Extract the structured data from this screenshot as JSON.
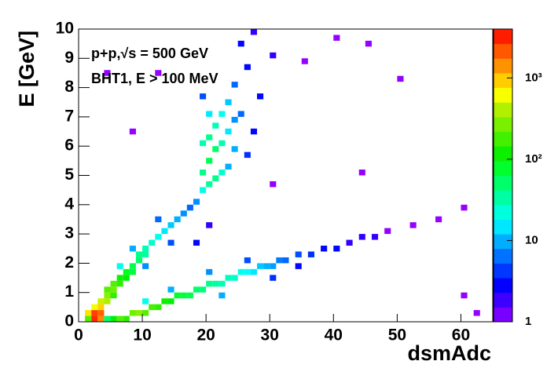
{
  "chart_data": {
    "type": "heatmap",
    "x_label": "dsmAdc",
    "y_label": "E [GeV]",
    "annotations": [
      "p+p,√s = 500 GeV",
      "BHT1, E > 100 MeV"
    ],
    "xlim": [
      0,
      65
    ],
    "xticks": [
      0,
      10,
      20,
      30,
      40,
      50,
      60
    ],
    "ylim": [
      0,
      10
    ],
    "yticks": [
      0,
      1,
      2,
      3,
      4,
      5,
      6,
      7,
      8,
      9,
      10
    ],
    "zlim": [
      1,
      4000
    ],
    "zlog": true,
    "zticks": [
      {
        "value": 1,
        "label": "1"
      },
      {
        "value": 10,
        "label": "10"
      },
      {
        "value": 100,
        "label": "10²"
      },
      {
        "value": 1000,
        "label": "10³"
      }
    ],
    "x": [
      1,
      1,
      2,
      2,
      3,
      3,
      2,
      3,
      3,
      4,
      4,
      4,
      5,
      5,
      5,
      6,
      6,
      7,
      7,
      8,
      8,
      9,
      9,
      10,
      10,
      11,
      12,
      13,
      14,
      15,
      16,
      17,
      6,
      8,
      12,
      10,
      14,
      18,
      19,
      19,
      20,
      19,
      20,
      21,
      21,
      22,
      22,
      23,
      23,
      24,
      24,
      25,
      26,
      20,
      21,
      22,
      20,
      19,
      23,
      24,
      25,
      27,
      28,
      30,
      18,
      20,
      26,
      27,
      4,
      5,
      6,
      7,
      8,
      9,
      10,
      11,
      12,
      13,
      14,
      15,
      16,
      17,
      18,
      19,
      20,
      21,
      22,
      23,
      24,
      25,
      26,
      27,
      28,
      29,
      30,
      31,
      32,
      34,
      36,
      38,
      40,
      42,
      44,
      46,
      48,
      52,
      56,
      60,
      62,
      60,
      14,
      20,
      26,
      30,
      34,
      10,
      22,
      35,
      40,
      45,
      50,
      44,
      30,
      12,
      8,
      4
    ],
    "y": [
      0,
      0.2,
      0,
      0.2,
      0,
      0.2,
      0.4,
      0.4,
      0.6,
      0.6,
      0.8,
      1.0,
      0.8,
      1.0,
      1.2,
      1.2,
      1.4,
      1.4,
      1.6,
      1.6,
      1.8,
      2.0,
      2.2,
      2.2,
      2.4,
      2.6,
      2.8,
      3.0,
      3.2,
      3.4,
      3.6,
      3.8,
      1.8,
      2.4,
      3.4,
      1.8,
      2.6,
      4.0,
      4.4,
      5.0,
      5.4,
      6.0,
      6.2,
      5.8,
      6.6,
      5.0,
      7.0,
      6.4,
      7.4,
      5.8,
      8.0,
      7.0,
      8.6,
      4.6,
      4.8,
      6.0,
      7.0,
      7.6,
      5.2,
      6.8,
      9.4,
      9.8,
      7.6,
      9.0,
      2.6,
      3.2,
      5.6,
      6.4,
      0,
      0,
      0,
      0,
      0.2,
      0.2,
      0.2,
      0.4,
      0.4,
      0.6,
      0.6,
      0.8,
      0.8,
      0.8,
      1.0,
      1.0,
      1.2,
      1.2,
      1.2,
      1.4,
      1.4,
      1.6,
      1.6,
      1.6,
      1.8,
      1.8,
      1.8,
      2.0,
      2.0,
      2.2,
      2.2,
      2.4,
      2.4,
      2.6,
      2.8,
      2.8,
      3.0,
      3.2,
      3.4,
      3.8,
      0.2,
      0.8,
      1.0,
      1.6,
      2.0,
      1.4,
      1.8,
      0.6,
      0.8,
      8.8,
      9.6,
      9.4,
      8.2,
      5.0,
      4.6,
      8.4,
      6.4,
      8.4
    ],
    "values": [
      200,
      800,
      3000,
      2500,
      1500,
      2000,
      600,
      900,
      500,
      400,
      300,
      200,
      150,
      250,
      200,
      150,
      120,
      100,
      90,
      70,
      60,
      50,
      40,
      35,
      30,
      25,
      20,
      15,
      12,
      10,
      8,
      6,
      20,
      10,
      6,
      8,
      5,
      8,
      20,
      40,
      60,
      30,
      40,
      50,
      30,
      25,
      20,
      15,
      12,
      10,
      6,
      6,
      3,
      35,
      40,
      30,
      15,
      5,
      10,
      8,
      3,
      2,
      3,
      2,
      3,
      2,
      4,
      3,
      50,
      100,
      200,
      150,
      250,
      300,
      200,
      180,
      150,
      120,
      100,
      80,
      70,
      60,
      50,
      45,
      40,
      35,
      30,
      28,
      25,
      20,
      18,
      15,
      12,
      10,
      9,
      7,
      6,
      5,
      4,
      3,
      3,
      2,
      2,
      2,
      1,
      1,
      1,
      1,
      1,
      1,
      10,
      8,
      5,
      4,
      3,
      20,
      10,
      1,
      1,
      1,
      1,
      1,
      1,
      1,
      1,
      1
    ]
  }
}
